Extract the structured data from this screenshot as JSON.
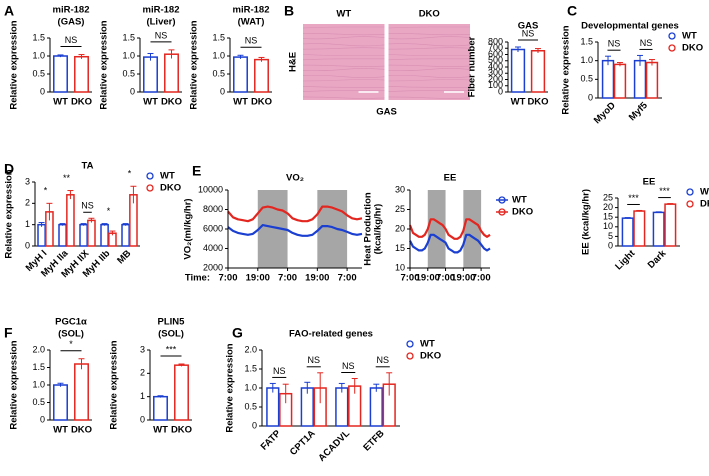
{
  "chart_data": [
    {
      "type": "bar",
      "panel": "A",
      "title": [
        "miR-182",
        "(GAS)"
      ],
      "ylabel": "Relative expression",
      "categories": [
        "WT",
        "DKO"
      ],
      "values": [
        1.0,
        0.98
      ],
      "errors": [
        0.03,
        0.06
      ],
      "colors": [
        "#1a3fd1",
        "#e3261f"
      ],
      "ylim": [
        0,
        1.5
      ],
      "yticks": [
        0,
        0.5,
        {
          "value": 1,
          "label": "1.0"
        },
        1.5
      ],
      "annotations": [
        "NS"
      ]
    },
    {
      "type": "bar",
      "title": [
        "miR-182",
        "(Liver)"
      ],
      "ylabel": "Relative expression",
      "categories": [
        "WT",
        "DKO"
      ],
      "values": [
        0.97,
        1.05
      ],
      "errors": [
        0.1,
        0.12
      ],
      "colors": [
        "#1a3fd1",
        "#e3261f"
      ],
      "ylim": [
        0,
        1.5
      ],
      "yticks": [
        0,
        0.5,
        {
          "value": 1,
          "label": "1.0"
        },
        1.5
      ],
      "annotations": [
        "NS"
      ]
    },
    {
      "type": "bar",
      "title": [
        "miR-182",
        "(WAT)"
      ],
      "ylabel": "Relative expression",
      "categories": [
        "WT",
        "DKO"
      ],
      "values": [
        0.97,
        0.9
      ],
      "errors": [
        0.05,
        0.06
      ],
      "colors": [
        "#1a3fd1",
        "#e3261f"
      ],
      "ylim": [
        0,
        1.5
      ],
      "yticks": [
        0,
        0.5,
        {
          "value": 1,
          "label": "1.0"
        },
        1.5
      ],
      "annotations": [
        "NS"
      ]
    },
    {
      "type": "image",
      "panel": "B",
      "labels": [
        "WT",
        "DKO"
      ],
      "ylabel": "H&E",
      "xlabel": "GAS"
    },
    {
      "type": "bar",
      "title": [
        "GAS"
      ],
      "ylabel": "Fiber number",
      "categories": [
        "WT",
        "DKO"
      ],
      "values": [
        680,
        660
      ],
      "errors": [
        40,
        35
      ],
      "colors": [
        "#1a3fd1",
        "#e3261f"
      ],
      "ylim": [
        0,
        800
      ],
      "yticks": [
        0,
        100,
        200,
        300,
        400,
        500,
        600,
        700,
        800
      ],
      "annotations": [
        "NS"
      ]
    },
    {
      "type": "grouped_bar",
      "panel": "C",
      "title": [
        "Developmental genes"
      ],
      "ylabel": "Relative expression",
      "categories": [
        "MyoD",
        "Myf5"
      ],
      "series": [
        {
          "name": "WT",
          "color": "#1a3fd1",
          "values": [
            1.0,
            1.0
          ],
          "errors": [
            0.12,
            0.14
          ]
        },
        {
          "name": "DKO",
          "color": "#e3261f",
          "values": [
            0.9,
            0.95
          ],
          "errors": [
            0.05,
            0.08
          ]
        }
      ],
      "ylim": [
        0,
        1.5
      ],
      "yticks": [
        0,
        0.5,
        {
          "value": 1,
          "label": "1.0"
        },
        1.5
      ],
      "annotations": [
        "NS",
        "NS"
      ],
      "legend": "right"
    },
    {
      "type": "grouped_bar",
      "panel": "D",
      "title": [
        "TA"
      ],
      "ylabel": "Relative expression",
      "categories": [
        "MyH I",
        "MyH IIa",
        "MyH IIX",
        "MyH IIb",
        "MB"
      ],
      "series": [
        {
          "name": "WT",
          "color": "#1a3fd1",
          "values": [
            1.0,
            1.0,
            1.0,
            1.0,
            1.0
          ],
          "errors": [
            0.1,
            0.05,
            0.05,
            0.05,
            0.05
          ]
        },
        {
          "name": "DKO",
          "color": "#e3261f",
          "values": [
            1.6,
            2.4,
            1.2,
            0.6,
            2.4
          ],
          "errors": [
            0.4,
            0.2,
            0.1,
            0.1,
            0.4
          ]
        }
      ],
      "ylim": [
        0,
        3
      ],
      "yticks": [
        0,
        1,
        2,
        3
      ],
      "annotations": [
        "*",
        "**",
        "NS",
        "*",
        "*"
      ],
      "legend": "right"
    },
    {
      "type": "line",
      "panel": "E",
      "title": [
        "VO₂"
      ],
      "ylabel": [
        "VO₂(ml/kg/hr)"
      ],
      "xlabel": "Time:",
      "x": [
        0,
        2,
        4,
        6,
        8,
        10,
        12,
        14,
        16,
        18,
        20,
        22,
        24,
        26,
        28,
        30,
        32,
        34,
        36,
        38,
        40,
        42,
        44,
        46,
        48,
        50,
        52,
        54
      ],
      "xlim": [
        0,
        54
      ],
      "xticks": [
        {
          "value": 0,
          "label": "7:00"
        },
        {
          "value": 12,
          "label": "19:00"
        },
        {
          "value": 24,
          "label": "7:00"
        },
        {
          "value": 36,
          "label": "19:00"
        },
        {
          "value": 48,
          "label": "7:00"
        }
      ],
      "dark_periods": [
        [
          12,
          24
        ],
        [
          36,
          48
        ]
      ],
      "series": [
        {
          "name": "WT",
          "color": "#1a3fd1",
          "values": [
            6200,
            5800,
            5600,
            5500,
            5400,
            5500,
            5900,
            6400,
            6300,
            6200,
            6100,
            6000,
            5900,
            5600,
            5400,
            5300,
            5300,
            5400,
            5800,
            6300,
            6300,
            6200,
            6000,
            5900,
            5700,
            5500,
            5400,
            5500
          ]
        },
        {
          "name": "DKO",
          "color": "#e3261f",
          "values": [
            7800,
            7200,
            7000,
            6900,
            6800,
            7000,
            7600,
            8200,
            8300,
            8200,
            8000,
            7900,
            7600,
            7100,
            6900,
            6800,
            6800,
            7000,
            7500,
            8300,
            8300,
            8200,
            8000,
            7800,
            7400,
            7100,
            7000,
            7100
          ]
        }
      ],
      "ylim": [
        2000,
        10000
      ],
      "yticks": [
        2000,
        4000,
        6000,
        8000,
        10000
      ]
    },
    {
      "type": "line",
      "title": [
        "EE"
      ],
      "ylabel": [
        "Heat Production",
        "(kcal/kg/hr)"
      ],
      "x": [
        0,
        2,
        4,
        6,
        8,
        10,
        12,
        14,
        16,
        18,
        20,
        22,
        24,
        26,
        28,
        30,
        32,
        34,
        36,
        38,
        40,
        42,
        44,
        46,
        48,
        50,
        52,
        54
      ],
      "xlim": [
        0,
        54
      ],
      "xticks": [
        {
          "value": 0,
          "label": "7:00"
        },
        {
          "value": 12,
          "label": "19:00"
        },
        {
          "value": 24,
          "label": "7:00"
        },
        {
          "value": 36,
          "label": "19:00"
        },
        {
          "value": 48,
          "label": "7:00"
        }
      ],
      "dark_periods": [
        [
          12,
          24
        ],
        [
          36,
          48
        ]
      ],
      "series": [
        {
          "name": "WT",
          "color": "#1a3fd1",
          "values": [
            17,
            15.5,
            15,
            14.5,
            14.5,
            15,
            16.5,
            18.5,
            18.5,
            18,
            17.5,
            17,
            16.5,
            15,
            14.5,
            14,
            14,
            14.5,
            16,
            18.5,
            18.5,
            18,
            17.5,
            17,
            16,
            15,
            14.5,
            15
          ]
        },
        {
          "name": "DKO",
          "color": "#e3261f",
          "values": [
            21,
            19,
            18.5,
            18,
            18,
            18.5,
            20,
            22.5,
            22.5,
            22,
            21.5,
            21,
            20,
            18.5,
            18,
            17.5,
            17.5,
            18,
            19.5,
            22.5,
            22.5,
            22,
            21.5,
            21,
            19.5,
            18.5,
            18,
            18.5
          ]
        }
      ],
      "ylim": [
        10,
        30
      ],
      "yticks": [
        10,
        15,
        20,
        25,
        30
      ],
      "legend": "right"
    },
    {
      "type": "grouped_bar",
      "title": [
        "EE"
      ],
      "ylabel": "EE (kcal/kg/hr)",
      "categories": [
        "Light",
        "Dark"
      ],
      "series": [
        {
          "name": "WT",
          "color": "#1a3fd1",
          "values": [
            14.5,
            17.5
          ],
          "errors": [
            0.3,
            0.3
          ]
        },
        {
          "name": "DKO",
          "color": "#e3261f",
          "values": [
            18.2,
            21.8
          ],
          "errors": [
            0.3,
            0.3
          ]
        }
      ],
      "ylim": [
        0,
        25
      ],
      "yticks": [
        0,
        5,
        10,
        15,
        20,
        25
      ],
      "annotations": [
        "***",
        "***"
      ],
      "legend": "right"
    },
    {
      "type": "bar",
      "panel": "F",
      "title": [
        "PGC1α",
        "(SOL)"
      ],
      "ylabel": "Relative expression",
      "categories": [
        "WT",
        "DKO"
      ],
      "values": [
        1.0,
        1.6
      ],
      "errors": [
        0.05,
        0.15
      ],
      "colors": [
        "#1a3fd1",
        "#e3261f"
      ],
      "ylim": [
        0,
        2
      ],
      "yticks": [
        0,
        0.5,
        {
          "value": 1,
          "label": "1.0"
        },
        1.5,
        {
          "value": 2,
          "label": "2.0"
        }
      ],
      "annotations": [
        "*"
      ]
    },
    {
      "type": "bar",
      "title": [
        "PLIN5",
        "(SOL)"
      ],
      "ylabel": "Relative expression",
      "categories": [
        "WT",
        "DKO"
      ],
      "values": [
        1.0,
        2.35
      ],
      "errors": [
        0.04,
        0.05
      ],
      "colors": [
        "#1a3fd1",
        "#e3261f"
      ],
      "ylim": [
        0,
        3
      ],
      "yticks": [
        0,
        1,
        2,
        3
      ],
      "annotations": [
        "***"
      ]
    },
    {
      "type": "grouped_bar",
      "panel": "G",
      "title": [
        "FAO-related genes"
      ],
      "ylabel": "Relative expression",
      "categories": [
        "FATP",
        "CPT1A",
        "ACADVL",
        "ETFB"
      ],
      "series": [
        {
          "name": "WT",
          "color": "#1a3fd1",
          "values": [
            1.0,
            1.0,
            1.0,
            1.0
          ],
          "errors": [
            0.12,
            0.15,
            0.12,
            0.1
          ]
        },
        {
          "name": "DKO",
          "color": "#e3261f",
          "values": [
            0.85,
            1.0,
            1.05,
            1.1
          ],
          "errors": [
            0.25,
            0.4,
            0.2,
            0.3
          ]
        }
      ],
      "ylim": [
        0,
        2
      ],
      "yticks": [
        0,
        0.5,
        {
          "value": 1,
          "label": "1.0"
        },
        1.5,
        {
          "value": 2,
          "label": "2.0"
        }
      ],
      "annotations": [
        "NS",
        "NS",
        "NS",
        "NS"
      ],
      "legend": "right"
    }
  ]
}
